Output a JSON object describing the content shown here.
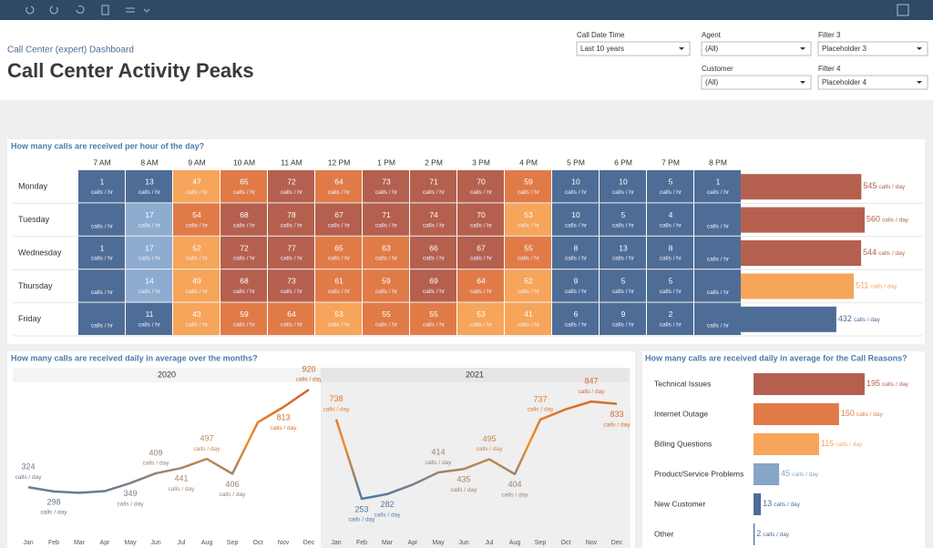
{
  "header": {
    "breadcrumb": "Call Center (expert) Dashboard",
    "title": "Call Center Activity Peaks"
  },
  "filters": [
    {
      "label": "Call Date Time",
      "value": "Last 10 years"
    },
    {
      "label": "Agent",
      "value": "(All)"
    },
    {
      "label": "Filter 3",
      "value": "Placeholder 3"
    },
    {
      "label": "Customer",
      "value": "(All)"
    },
    {
      "label": "Filter 4",
      "value": "Placeholder 4"
    }
  ],
  "chart_data": [
    {
      "type": "heatmap",
      "title": "How many calls are received per hour of the day?",
      "columns": [
        "7 AM",
        "8 AM",
        "9 AM",
        "10 AM",
        "11 AM",
        "12 PM",
        "1 PM",
        "2 PM",
        "3 PM",
        "4 PM",
        "5 PM",
        "6 PM",
        "7 PM",
        "8 PM"
      ],
      "rows": [
        "Monday",
        "Tuesday",
        "Wednesday",
        "Thursday",
        "Friday"
      ],
      "values": [
        [
          1,
          13,
          47,
          65,
          72,
          64,
          73,
          71,
          70,
          59,
          10,
          10,
          5,
          1
        ],
        [
          null,
          17,
          54,
          68,
          78,
          67,
          71,
          74,
          70,
          53,
          10,
          5,
          4,
          null
        ],
        [
          1,
          17,
          52,
          72,
          77,
          65,
          63,
          66,
          67,
          55,
          8,
          13,
          8,
          null
        ],
        [
          null,
          14,
          49,
          68,
          73,
          61,
          59,
          69,
          64,
          52,
          9,
          5,
          5,
          null
        ],
        [
          null,
          11,
          43,
          59,
          64,
          53,
          55,
          55,
          53,
          41,
          6,
          9,
          2,
          null
        ]
      ],
      "cell_unit": "calls / hr",
      "colors": [
        "#4e6d96",
        "#8eacd0",
        "#f7a55a",
        "#e07b48",
        "#b5604f"
      ],
      "totals": {
        "values": [
          545,
          560,
          544,
          511,
          432
        ],
        "colors": [
          "#b5604f",
          "#b5604f",
          "#b5604f",
          "#f7a55a",
          "#4e6d96"
        ],
        "unit": "calls / day"
      }
    },
    {
      "type": "line",
      "title": "How many calls are received daily in average over the months?",
      "unit": "calls / day",
      "colors": [
        "#4e79a7",
        "#f28e2b",
        "#d0612a"
      ],
      "panels": [
        {
          "name": "2020",
          "categories": [
            "Jan",
            "Feb",
            "Mar",
            "Apr",
            "May",
            "Jun",
            "Jul",
            "Aug",
            "Sep",
            "Oct",
            "Nov",
            "Dec"
          ],
          "values": [
            324,
            298,
            290,
            300,
            349,
            409,
            441,
            497,
            406,
            720,
            813,
            920
          ],
          "value_labels": [
            "324",
            "298",
            null,
            null,
            "349",
            "409",
            "441",
            "497",
            "406",
            null,
            "813",
            "920"
          ]
        },
        {
          "name": "2021",
          "categories": [
            "Jan",
            "Feb",
            "Mar",
            "Apr",
            "May",
            "Jun",
            "Jul",
            "Aug",
            "Sep",
            "Oct",
            "Nov",
            "Dec"
          ],
          "values": [
            738,
            253,
            282,
            340,
            414,
            435,
            495,
            404,
            737,
            800,
            847,
            833
          ],
          "value_labels": [
            "738",
            "253",
            "282",
            null,
            "414",
            "435",
            "495",
            "404",
            "737",
            null,
            "847",
            "833"
          ]
        }
      ]
    },
    {
      "type": "bar",
      "title": "How many calls are received daily in average for the Call Reasons?",
      "categories": [
        "Technical Issues",
        "Internet Outage",
        "Billing Questions",
        "Product/Service Problems",
        "New Customer",
        "Other"
      ],
      "values": [
        195,
        150,
        115,
        45,
        13,
        2
      ],
      "colors": [
        "#b5604f",
        "#e07b48",
        "#f7a55a",
        "#86a5c8",
        "#4e6d96",
        "#4e6d96"
      ],
      "unit": "calls / day"
    }
  ]
}
